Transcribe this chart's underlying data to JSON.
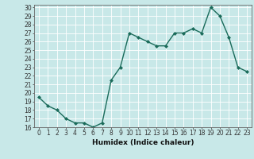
{
  "x": [
    0,
    1,
    2,
    3,
    4,
    5,
    6,
    7,
    8,
    9,
    10,
    11,
    12,
    13,
    14,
    15,
    16,
    17,
    18,
    19,
    20,
    21,
    22,
    23
  ],
  "y": [
    19.5,
    18.5,
    18.0,
    17.0,
    16.5,
    16.5,
    16.0,
    16.5,
    21.5,
    23.0,
    27.0,
    26.5,
    26.0,
    25.5,
    25.5,
    27.0,
    27.0,
    27.5,
    27.0,
    30.0,
    29.0,
    26.5,
    23.0,
    22.5
  ],
  "line_color": "#1a6b5a",
  "marker": "D",
  "markersize": 2.0,
  "linewidth": 1.0,
  "xlabel": "Humidex (Indice chaleur)",
  "xlim": [
    -0.5,
    23.5
  ],
  "ylim": [
    16,
    30
  ],
  "yticks": [
    16,
    17,
    18,
    19,
    20,
    21,
    22,
    23,
    24,
    25,
    26,
    27,
    28,
    29,
    30
  ],
  "xticks": [
    0,
    1,
    2,
    3,
    4,
    5,
    6,
    7,
    8,
    9,
    10,
    11,
    12,
    13,
    14,
    15,
    16,
    17,
    18,
    19,
    20,
    21,
    22,
    23
  ],
  "bg_color": "#c8e8e8",
  "grid_color": "#ffffff",
  "tick_fontsize": 5.5,
  "xlabel_fontsize": 6.5
}
